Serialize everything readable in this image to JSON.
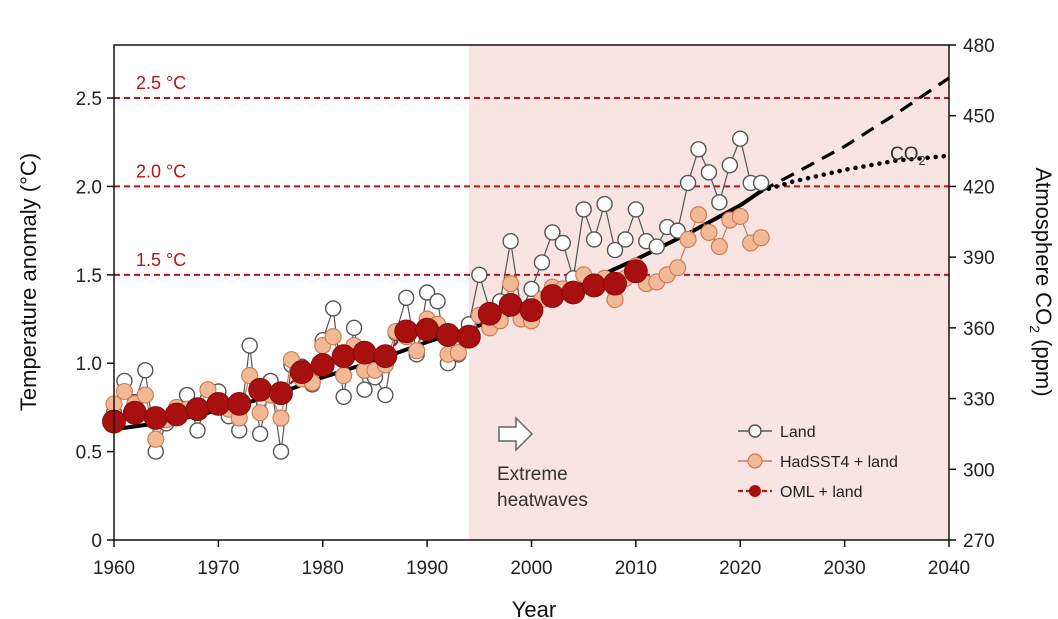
{
  "chart_data": {
    "type": "line",
    "x_axis": {
      "label": "Year",
      "range": [
        1960,
        2040
      ],
      "ticks": [
        1960,
        1970,
        1980,
        1990,
        2000,
        2010,
        2020,
        2030,
        2040
      ]
    },
    "y_axis_left": {
      "label": "Temperature anomaly (°C)",
      "range": [
        0,
        2.8
      ],
      "ticks": [
        0,
        0.5,
        1.0,
        1.5,
        2.0,
        2.5
      ],
      "tick_labels": [
        "0",
        "0.5",
        "1.0",
        "1.5",
        "2.0",
        "2.5"
      ]
    },
    "y_axis_right": {
      "label_main": "Atmosphere CO",
      "label_sub": "2",
      "label_tail": " (ppm)",
      "range": [
        270,
        480
      ],
      "ticks": [
        270,
        300,
        330,
        360,
        390,
        420,
        450,
        480
      ]
    },
    "reference_lines": [
      {
        "value": 2.5,
        "label": "2.5 °C"
      },
      {
        "value": 2.0,
        "label": "2.0 °C"
      },
      {
        "value": 1.5,
        "label": "1.5 °C"
      }
    ],
    "shaded_region": {
      "x_start": 1994,
      "x_end": 2040,
      "label_line1": "Extreme",
      "label_line2": "heatwaves"
    },
    "series": [
      {
        "name": "Land",
        "years": [
          1960,
          1961,
          1962,
          1963,
          1964,
          1965,
          1966,
          1967,
          1968,
          1969,
          1970,
          1971,
          1972,
          1973,
          1974,
          1975,
          1976,
          1977,
          1978,
          1979,
          1980,
          1981,
          1982,
          1983,
          1984,
          1985,
          1986,
          1987,
          1988,
          1989,
          1990,
          1991,
          1992,
          1993,
          1994,
          1995,
          1996,
          1997,
          1998,
          1999,
          2000,
          2001,
          2002,
          2003,
          2004,
          2005,
          2006,
          2007,
          2008,
          2009,
          2010,
          2011,
          2012,
          2013,
          2014,
          2015,
          2016,
          2017,
          2018,
          2019,
          2020,
          2021,
          2022
        ],
        "values": [
          0.72,
          0.9,
          0.78,
          0.96,
          0.5,
          0.66,
          0.72,
          0.82,
          0.62,
          0.8,
          0.84,
          0.7,
          0.62,
          1.1,
          0.6,
          0.9,
          0.5,
          0.99,
          0.98,
          0.88,
          1.13,
          1.31,
          0.81,
          1.2,
          0.85,
          0.92,
          0.82,
          1.17,
          1.37,
          1.05,
          1.4,
          1.35,
          1.0,
          1.05,
          1.22,
          1.5,
          1.3,
          1.35,
          1.69,
          1.3,
          1.42,
          1.57,
          1.74,
          1.68,
          1.48,
          1.87,
          1.7,
          1.9,
          1.64,
          1.7,
          1.87,
          1.69,
          1.66,
          1.77,
          1.75,
          2.02,
          2.21,
          2.08,
          1.91,
          2.12,
          2.27,
          2.02,
          2.02
        ]
      },
      {
        "name": "HadSST4 + land",
        "years": [
          1960,
          1961,
          1962,
          1963,
          1964,
          1965,
          1966,
          1967,
          1968,
          1969,
          1970,
          1971,
          1972,
          1973,
          1974,
          1975,
          1976,
          1977,
          1978,
          1979,
          1980,
          1981,
          1982,
          1983,
          1984,
          1985,
          1986,
          1987,
          1988,
          1989,
          1990,
          1991,
          1992,
          1993,
          1994,
          1995,
          1996,
          1997,
          1998,
          1999,
          2000,
          2001,
          2002,
          2003,
          2004,
          2005,
          2006,
          2007,
          2008,
          2009,
          2010,
          2011,
          2012,
          2013,
          2014,
          2015,
          2016,
          2017,
          2018,
          2019,
          2020,
          2021,
          2022
        ],
        "values": [
          0.77,
          0.84,
          0.77,
          0.82,
          0.57,
          0.68,
          0.75,
          0.74,
          0.73,
          0.85,
          0.78,
          0.74,
          0.69,
          0.93,
          0.72,
          0.82,
          0.69,
          1.02,
          0.91,
          0.89,
          1.1,
          1.15,
          0.93,
          1.1,
          0.96,
          0.96,
          0.99,
          1.18,
          1.15,
          1.07,
          1.25,
          1.22,
          1.05,
          1.06,
          1.15,
          1.27,
          1.2,
          1.24,
          1.45,
          1.25,
          1.24,
          1.36,
          1.43,
          1.42,
          1.4,
          1.5,
          1.46,
          1.48,
          1.36,
          1.48,
          1.55,
          1.45,
          1.46,
          1.5,
          1.54,
          1.7,
          1.84,
          1.74,
          1.66,
          1.81,
          1.83,
          1.68,
          1.71
        ]
      },
      {
        "name": "OML + land",
        "years": [
          1960,
          1962,
          1964,
          1966,
          1968,
          1970,
          1972,
          1974,
          1976,
          1978,
          1980,
          1982,
          1984,
          1986,
          1988,
          1990,
          1992,
          1994,
          1996,
          1998,
          2000,
          2002,
          2004,
          2006,
          2008,
          2010
        ],
        "values": [
          0.67,
          0.72,
          0.69,
          0.71,
          0.74,
          0.77,
          0.77,
          0.85,
          0.83,
          0.95,
          0.99,
          1.04,
          1.06,
          1.04,
          1.18,
          1.19,
          1.16,
          1.15,
          1.28,
          1.33,
          1.3,
          1.38,
          1.4,
          1.44,
          1.45,
          1.52
        ]
      },
      {
        "name": "CO2 (observed)",
        "years": [
          1960,
          1965,
          1970,
          1975,
          1980,
          1985,
          1990,
          1995,
          2000,
          2005,
          2010,
          2015,
          2020,
          2022
        ],
        "values": [
          317,
          320,
          325,
          331,
          339,
          346,
          354,
          361,
          369,
          379,
          389,
          400,
          412,
          418
        ]
      },
      {
        "name": "CO2 (projection, dashed)",
        "years": [
          2022,
          2025,
          2030,
          2035,
          2040
        ],
        "values": [
          418,
          425,
          437,
          451,
          466
        ]
      },
      {
        "name": "CO2 (projection, dotted)",
        "years": [
          2022,
          2025,
          2030,
          2035,
          2040
        ],
        "values": [
          418,
          422,
          427,
          431,
          433
        ]
      }
    ],
    "annotations": {
      "co2_main": "CO",
      "co2_sub": "2"
    },
    "legend": {
      "position": "bottom-right",
      "entries": [
        "Land",
        "HadSST4 + land",
        "OML + land"
      ]
    }
  },
  "colors": {
    "land_fill": "#ffffff",
    "land_stroke": "#555555",
    "hadsst_fill": "#f3b996",
    "hadsst_stroke": "#c97a52",
    "oml_fill": "#a80f0f",
    "oml_line": "#b01818",
    "reference": "#b81414",
    "shading": "#f9e4e4",
    "co2": "#000000"
  }
}
